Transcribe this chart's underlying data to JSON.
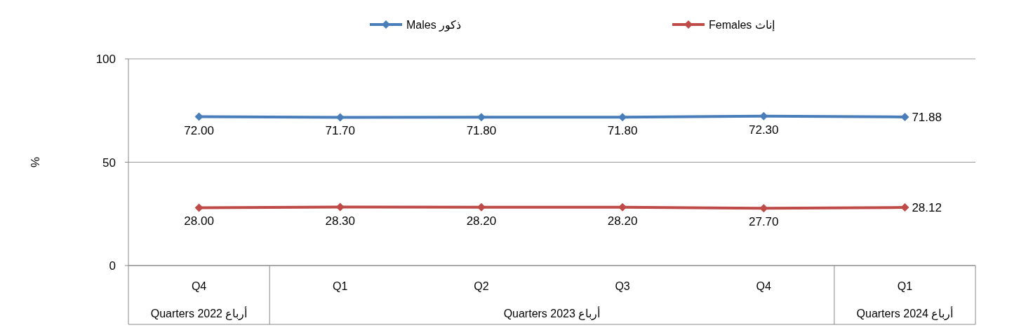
{
  "chart_data": {
    "type": "line",
    "ylabel": "%",
    "categories": [
      "Q4",
      "Q1",
      "Q2",
      "Q3",
      "Q4",
      "Q1"
    ],
    "series": [
      {
        "name": "Males ذكور",
        "color": "#4a7ebb",
        "values": [
          72.0,
          71.7,
          71.8,
          71.8,
          72.3,
          71.88
        ],
        "value_labels": [
          "72.00",
          "71.70",
          "71.80",
          "71.80",
          "72.30",
          "71.88"
        ]
      },
      {
        "name": "Females إناث",
        "color": "#be4b48",
        "values": [
          28.0,
          28.3,
          28.2,
          28.2,
          27.7,
          28.12
        ],
        "value_labels": [
          "28.00",
          "28.30",
          "28.20",
          "28.20",
          "27.70",
          "28.12"
        ]
      }
    ],
    "annotations": [
      "Quarters  2022  أرباع",
      "Quarters  2023  أرباع",
      "Quarters  2024  أرباع"
    ],
    "ylim": [
      0,
      100
    ],
    "yticks": [
      0,
      50,
      100
    ],
    "grid": "y",
    "legend": "top",
    "marker": "diamond",
    "line_style": "solid"
  }
}
